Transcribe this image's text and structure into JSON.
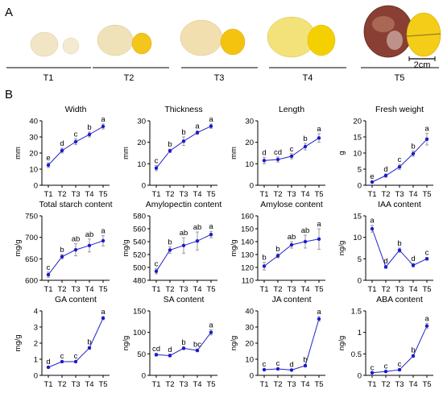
{
  "panel_labels": {
    "a": "A",
    "b": "B"
  },
  "scale_bar_label": "2cm",
  "stages": [
    "T1",
    "T2",
    "T3",
    "T4",
    "T5"
  ],
  "colors": {
    "line": "#2323c8",
    "point": "#1a1ad2",
    "error": "#9a9a9a",
    "axis": "#000000"
  },
  "chart_data": [
    {
      "type": "line",
      "title": "Width",
      "ylabel": "mm",
      "ylim": [
        0,
        40
      ],
      "yticks": [
        0,
        10,
        20,
        30,
        40
      ],
      "categories": [
        "T1",
        "T2",
        "T3",
        "T4",
        "T5"
      ],
      "values": [
        12.5,
        21.5,
        27,
        31.5,
        36.5
      ],
      "errors": [
        1.5,
        1.5,
        1.8,
        1.5,
        1.5
      ],
      "letters": [
        "e",
        "d",
        "c",
        "b",
        "a"
      ]
    },
    {
      "type": "line",
      "title": "Thickness",
      "ylabel": "mm",
      "ylim": [
        0,
        30
      ],
      "yticks": [
        0,
        10,
        20,
        30
      ],
      "categories": [
        "T1",
        "T2",
        "T3",
        "T4",
        "T5"
      ],
      "values": [
        8,
        16,
        20.5,
        24.5,
        27.5
      ],
      "errors": [
        1.2,
        0.8,
        2,
        0.8,
        1
      ],
      "letters": [
        "c",
        "b",
        "b",
        "a",
        "a"
      ]
    },
    {
      "type": "line",
      "title": "Length",
      "ylabel": "mm",
      "ylim": [
        0,
        30
      ],
      "yticks": [
        0,
        10,
        20,
        30
      ],
      "categories": [
        "T1",
        "T2",
        "T3",
        "T4",
        "T5"
      ],
      "values": [
        11.5,
        12,
        13.5,
        18,
        22
      ],
      "errors": [
        1.5,
        1.2,
        1.2,
        1.5,
        2
      ],
      "letters": [
        "d",
        "cd",
        "c",
        "b",
        "a"
      ]
    },
    {
      "type": "line",
      "title": "Fresh weight",
      "ylabel": "g",
      "ylim": [
        0,
        20
      ],
      "yticks": [
        0,
        5,
        10,
        15,
        20
      ],
      "categories": [
        "T1",
        "T2",
        "T3",
        "T4",
        "T5"
      ],
      "values": [
        1,
        3,
        5.7,
        9.8,
        14.3
      ],
      "errors": [
        0.3,
        0.5,
        0.8,
        0.8,
        1.8
      ],
      "letters": [
        "e",
        "d",
        "c",
        "b",
        "a"
      ]
    },
    {
      "type": "line",
      "title": "Total starch content",
      "ylabel": "mg/g",
      "ylim": [
        600,
        750
      ],
      "yticks": [
        600,
        650,
        700,
        750
      ],
      "categories": [
        "T1",
        "T2",
        "T3",
        "T4",
        "T5"
      ],
      "values": [
        613,
        655,
        671,
        681,
        692
      ],
      "errors": [
        6,
        5,
        14,
        15,
        12
      ],
      "letters": [
        "c",
        "b",
        "ab",
        "ab",
        "a"
      ]
    },
    {
      "type": "line",
      "title": "Amylopectin content",
      "ylabel": "mg/g",
      "ylim": [
        480,
        580
      ],
      "yticks": [
        480,
        500,
        520,
        540,
        560,
        580
      ],
      "categories": [
        "T1",
        "T2",
        "T3",
        "T4",
        "T5"
      ],
      "values": [
        494,
        527,
        534,
        541,
        551
      ],
      "errors": [
        4,
        5,
        12,
        14,
        5
      ],
      "letters": [
        "c",
        "b",
        "ab",
        "ab",
        "a"
      ]
    },
    {
      "type": "line",
      "title": "Amylose content",
      "ylabel": "mg/g",
      "ylim": [
        110,
        160
      ],
      "yticks": [
        110,
        120,
        130,
        140,
        150,
        160
      ],
      "categories": [
        "T1",
        "T2",
        "T3",
        "T4",
        "T5"
      ],
      "values": [
        121,
        129,
        137.5,
        140,
        142
      ],
      "errors": [
        3,
        1.5,
        2.5,
        5,
        8
      ],
      "letters": [
        "b",
        "b",
        "ab",
        "ab",
        "a"
      ]
    },
    {
      "type": "line",
      "title": "IAA content",
      "ylabel": "ng/g",
      "ylim": [
        0,
        15
      ],
      "yticks": [
        0,
        5,
        10,
        15
      ],
      "categories": [
        "T1",
        "T2",
        "T3",
        "T4",
        "T5"
      ],
      "values": [
        12,
        3.1,
        7,
        3.5,
        5
      ],
      "errors": [
        0.8,
        0.3,
        0.5,
        0.4,
        0.3
      ],
      "letters": [
        "a",
        "d",
        "b",
        "d",
        "c"
      ]
    },
    {
      "type": "line",
      "title": "GA content",
      "ylabel": "mg/g",
      "ylim": [
        0,
        4
      ],
      "yticks": [
        0,
        1,
        2,
        3,
        4
      ],
      "categories": [
        "T1",
        "T2",
        "T3",
        "T4",
        "T5"
      ],
      "values": [
        0.5,
        0.85,
        0.85,
        1.7,
        3.55
      ],
      "errors": [
        0.05,
        0.05,
        0.05,
        0.08,
        0.1
      ],
      "letters": [
        "d",
        "c",
        "c",
        "b",
        "a"
      ]
    },
    {
      "type": "line",
      "title": "SA content",
      "ylabel": "ng/g",
      "ylim": [
        0,
        150
      ],
      "yticks": [
        0,
        50,
        100,
        150
      ],
      "categories": [
        "T1",
        "T2",
        "T3",
        "T4",
        "T5"
      ],
      "values": [
        48,
        46,
        63,
        58,
        100
      ],
      "errors": [
        3,
        3,
        3,
        3,
        6
      ],
      "letters": [
        "cd",
        "d",
        "b",
        "bc",
        "a"
      ]
    },
    {
      "type": "line",
      "title": "JA content",
      "ylabel": "ng/g",
      "ylim": [
        0,
        40
      ],
      "yticks": [
        0,
        10,
        20,
        30,
        40
      ],
      "categories": [
        "T1",
        "T2",
        "T3",
        "T4",
        "T5"
      ],
      "values": [
        3.5,
        4,
        3.3,
        6,
        35
      ],
      "errors": [
        0.5,
        0.5,
        0.5,
        0.8,
        1.5
      ],
      "letters": [
        "c",
        "c",
        "d",
        "b",
        "a"
      ]
    },
    {
      "type": "line",
      "title": "ABA content",
      "ylabel": "ng/g",
      "ylim": [
        0,
        1.5
      ],
      "yticks": [
        0,
        0.5,
        1,
        1.5
      ],
      "categories": [
        "T1",
        "T2",
        "T3",
        "T4",
        "T5"
      ],
      "values": [
        0.06,
        0.09,
        0.13,
        0.45,
        1.15
      ],
      "errors": [
        0.01,
        0.01,
        0.02,
        0.03,
        0.06
      ],
      "letters": [
        "c",
        "c",
        "c",
        "b",
        "a"
      ]
    }
  ]
}
